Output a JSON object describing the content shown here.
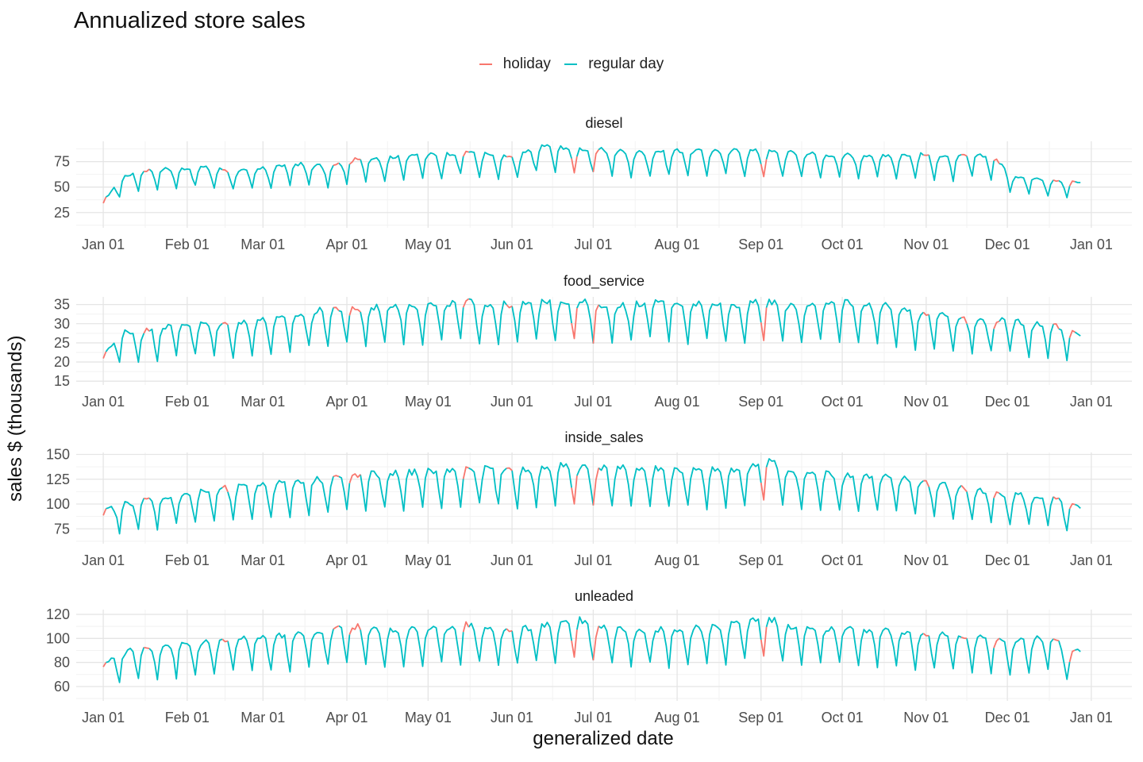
{
  "chart_data": {
    "type": "line",
    "title": "Annualized store sales",
    "xlabel": "generalized date",
    "ylabel": "sales $ (thousands)",
    "legend": {
      "position": "top",
      "entries": [
        {
          "name": "holiday",
          "color": "#F8766D"
        },
        {
          "name": "regular day",
          "color": "#00BFC4"
        }
      ]
    },
    "x_ticks": [
      "Jan 01",
      "Feb 01",
      "Mar 01",
      "Apr 01",
      "May 01",
      "Jun 01",
      "Jul 01",
      "Aug 01",
      "Sep 01",
      "Oct 01",
      "Nov 01",
      "Dec 01",
      "Jan 01"
    ],
    "grid": true,
    "panels": [
      {
        "name": "diesel",
        "ylim": [
          10,
          95
        ],
        "yticks": [
          25,
          50,
          75
        ],
        "x": [
          0,
          7,
          14,
          21,
          28,
          35,
          42,
          49,
          56,
          63,
          70,
          77,
          84,
          91,
          98,
          105,
          112,
          119,
          126,
          133,
          140,
          147,
          154,
          161,
          168,
          175,
          182,
          189,
          196,
          203,
          210,
          217,
          224,
          231,
          238,
          245,
          252,
          259,
          266,
          273,
          280,
          287,
          294,
          301,
          308,
          315,
          322,
          329,
          336,
          343,
          350,
          357,
          361
        ],
        "values": [
          36,
          60,
          66,
          68,
          68,
          70,
          68,
          66,
          67,
          70,
          73,
          72,
          70,
          76,
          79,
          79,
          82,
          82,
          82,
          86,
          83,
          80,
          81,
          91,
          90,
          88,
          87,
          86,
          84,
          85,
          86,
          86,
          86,
          86,
          86,
          85,
          84,
          84,
          82,
          82,
          82,
          82,
          82,
          82,
          81,
          79,
          83,
          80,
          61,
          60,
          58,
          55,
          55
        ],
        "holiday_dates": [
          0,
          16,
          45,
          86,
          92,
          94,
          134,
          150,
          174,
          182,
          244,
          304,
          318,
          330,
          352,
          358
        ]
      },
      {
        "name": "food_service",
        "ylim": [
          14,
          37
        ],
        "yticks": [
          15,
          20,
          25,
          30,
          35
        ],
        "x": [
          0,
          7,
          14,
          21,
          28,
          35,
          42,
          49,
          56,
          63,
          70,
          77,
          84,
          91,
          98,
          105,
          112,
          119,
          126,
          133,
          140,
          147,
          154,
          161,
          168,
          175,
          182,
          189,
          196,
          203,
          210,
          217,
          224,
          231,
          238,
          245,
          252,
          259,
          266,
          273,
          280,
          287,
          294,
          301,
          308,
          315,
          322,
          329,
          336,
          343,
          350,
          357,
          361
        ],
        "values": [
          22,
          28,
          28,
          29,
          30,
          30,
          30,
          30,
          31,
          31,
          32,
          33,
          34,
          34,
          34,
          35,
          35,
          35,
          35,
          36,
          35,
          35,
          35,
          36,
          36,
          36,
          35,
          35,
          35,
          36,
          36,
          35,
          36,
          35,
          35,
          36,
          35,
          35,
          35,
          36,
          35,
          35,
          34,
          33,
          33,
          32,
          31,
          31,
          31,
          30,
          30,
          28,
          27
        ],
        "holiday_dates": [
          0,
          16,
          45,
          86,
          92,
          94,
          134,
          150,
          174,
          182,
          244,
          304,
          318,
          330,
          352,
          358
        ]
      },
      {
        "name": "inside_sales",
        "ylim": [
          60,
          152
        ],
        "yticks": [
          75,
          100,
          125,
          150
        ],
        "x": [
          0,
          7,
          14,
          21,
          28,
          35,
          42,
          49,
          56,
          63,
          70,
          77,
          84,
          91,
          98,
          105,
          112,
          119,
          126,
          133,
          140,
          147,
          154,
          161,
          168,
          175,
          182,
          189,
          196,
          203,
          210,
          217,
          224,
          231,
          238,
          245,
          252,
          259,
          266,
          273,
          280,
          287,
          294,
          301,
          308,
          315,
          322,
          329,
          336,
          343,
          350,
          357,
          361
        ],
        "values": [
          93,
          100,
          104,
          106,
          110,
          112,
          115,
          117,
          119,
          121,
          123,
          125,
          127,
          129,
          130,
          131,
          132,
          133,
          134,
          136,
          136,
          136,
          135,
          136,
          139,
          138,
          137,
          136,
          136,
          136,
          135,
          134,
          134,
          135,
          137,
          146,
          134,
          132,
          131,
          130,
          129,
          128,
          126,
          124,
          121,
          117,
          115,
          112,
          110,
          108,
          106,
          100,
          96
        ],
        "holiday_dates": [
          0,
          16,
          45,
          86,
          92,
          94,
          134,
          150,
          174,
          182,
          244,
          304,
          318,
          330,
          352,
          358
        ]
      },
      {
        "name": "unleaded",
        "ylim": [
          48,
          124
        ],
        "yticks": [
          60,
          80,
          100,
          120
        ],
        "x": [
          0,
          7,
          14,
          21,
          28,
          35,
          42,
          49,
          56,
          63,
          70,
          77,
          84,
          91,
          98,
          105,
          112,
          119,
          126,
          133,
          140,
          147,
          154,
          161,
          168,
          175,
          182,
          189,
          196,
          203,
          210,
          217,
          224,
          231,
          238,
          245,
          252,
          259,
          266,
          273,
          280,
          287,
          294,
          301,
          308,
          315,
          322,
          329,
          336,
          343,
          350,
          357,
          361
        ],
        "values": [
          80,
          88,
          92,
          94,
          95,
          96,
          97,
          100,
          101,
          102,
          103,
          105,
          107,
          111,
          108,
          107,
          108,
          108,
          109,
          112,
          110,
          107,
          108,
          110,
          113,
          117,
          111,
          109,
          108,
          108,
          108,
          108,
          109,
          112,
          115,
          118,
          110,
          109,
          108,
          108,
          107,
          107,
          106,
          104,
          103,
          102,
          101,
          100,
          99,
          99,
          103,
          88,
          89
        ],
        "holiday_dates": [
          0,
          16,
          45,
          86,
          92,
          94,
          134,
          150,
          174,
          182,
          244,
          304,
          318,
          330,
          352,
          358
        ]
      }
    ]
  }
}
